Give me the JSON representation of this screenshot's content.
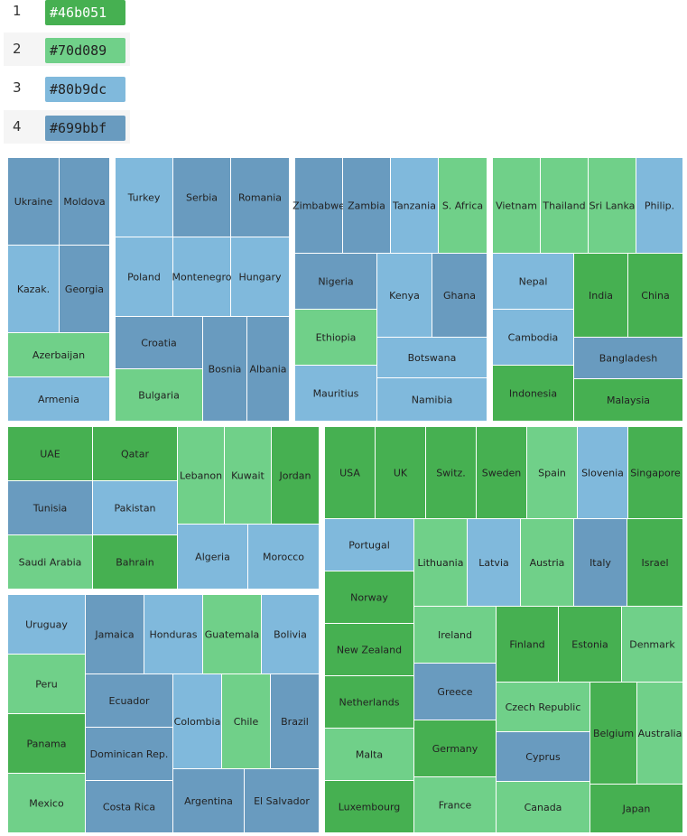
{
  "legend": [
    {
      "index": "1",
      "color": "#46b051",
      "label": "#46b051"
    },
    {
      "index": "2",
      "color": "#70d089",
      "label": "#70d089"
    },
    {
      "index": "3",
      "color": "#80b9dc",
      "label": "#80b9dc"
    },
    {
      "index": "4",
      "color": "#699bbf",
      "label": "#699bbf"
    }
  ],
  "chart_data": {
    "type": "treemap",
    "color_categories": {
      "1": "#46b051",
      "2": "#70d089",
      "3": "#80b9dc",
      "4": "#699bbf"
    },
    "leaves": [
      {
        "name": "Ukraine",
        "category": 4
      },
      {
        "name": "Moldova",
        "category": 4
      },
      {
        "name": "Kazak.",
        "category": 3
      },
      {
        "name": "Georgia",
        "category": 4
      },
      {
        "name": "Azerbaijan",
        "category": 2
      },
      {
        "name": "Armenia",
        "category": 3
      },
      {
        "name": "Turkey",
        "category": 3
      },
      {
        "name": "Serbia",
        "category": 4
      },
      {
        "name": "Romania",
        "category": 4
      },
      {
        "name": "Poland",
        "category": 3
      },
      {
        "name": "Montenegro",
        "category": 3
      },
      {
        "name": "Hungary",
        "category": 3
      },
      {
        "name": "Croatia",
        "category": 4
      },
      {
        "name": "Bulgaria",
        "category": 2
      },
      {
        "name": "Bosnia",
        "category": 4
      },
      {
        "name": "Albania",
        "category": 4
      },
      {
        "name": "Zimbabwe",
        "category": 4
      },
      {
        "name": "Zambia",
        "category": 4
      },
      {
        "name": "Tanzania",
        "category": 3
      },
      {
        "name": "S. Africa",
        "category": 2
      },
      {
        "name": "Nigeria",
        "category": 4
      },
      {
        "name": "Kenya",
        "category": 3
      },
      {
        "name": "Ghana",
        "category": 4
      },
      {
        "name": "Ethiopia",
        "category": 2
      },
      {
        "name": "Botswana",
        "category": 3
      },
      {
        "name": "Mauritius",
        "category": 3
      },
      {
        "name": "Namibia",
        "category": 3
      },
      {
        "name": "Vietnam",
        "category": 2
      },
      {
        "name": "Thailand",
        "category": 2
      },
      {
        "name": "Sri Lanka",
        "category": 2
      },
      {
        "name": "Philip.",
        "category": 3
      },
      {
        "name": "Nepal",
        "category": 3
      },
      {
        "name": "India",
        "category": 1
      },
      {
        "name": "China",
        "category": 1
      },
      {
        "name": "Cambodia",
        "category": 3
      },
      {
        "name": "Bangladesh",
        "category": 4
      },
      {
        "name": "Indonesia",
        "category": 1
      },
      {
        "name": "Malaysia",
        "category": 1
      },
      {
        "name": "UAE",
        "category": 1
      },
      {
        "name": "Qatar",
        "category": 1
      },
      {
        "name": "Lebanon",
        "category": 2
      },
      {
        "name": "Kuwait",
        "category": 2
      },
      {
        "name": "Jordan",
        "category": 1
      },
      {
        "name": "Tunisia",
        "category": 4
      },
      {
        "name": "Pakistan",
        "category": 3
      },
      {
        "name": "Saudi Arabia",
        "category": 2
      },
      {
        "name": "Bahrain",
        "category": 1
      },
      {
        "name": "Algeria",
        "category": 3
      },
      {
        "name": "Morocco",
        "category": 3
      },
      {
        "name": "Uruguay",
        "category": 3
      },
      {
        "name": "Jamaica",
        "category": 4
      },
      {
        "name": "Honduras",
        "category": 3
      },
      {
        "name": "Guatemala",
        "category": 2
      },
      {
        "name": "Bolivia",
        "category": 3
      },
      {
        "name": "Peru",
        "category": 2
      },
      {
        "name": "Ecuador",
        "category": 4
      },
      {
        "name": "Colombia",
        "category": 3
      },
      {
        "name": "Chile",
        "category": 2
      },
      {
        "name": "Brazil",
        "category": 4
      },
      {
        "name": "Panama",
        "category": 1
      },
      {
        "name": "Dominican Rep.",
        "category": 4
      },
      {
        "name": "Mexico",
        "category": 2
      },
      {
        "name": "Costa Rica",
        "category": 4
      },
      {
        "name": "Argentina",
        "category": 4
      },
      {
        "name": "El Salvador",
        "category": 4
      },
      {
        "name": "USA",
        "category": 1
      },
      {
        "name": "UK",
        "category": 1
      },
      {
        "name": "Switz.",
        "category": 1
      },
      {
        "name": "Sweden",
        "category": 1
      },
      {
        "name": "Spain",
        "category": 2
      },
      {
        "name": "Slovenia",
        "category": 3
      },
      {
        "name": "Singapore",
        "category": 1
      },
      {
        "name": "Portugal",
        "category": 3
      },
      {
        "name": "Lithuania",
        "category": 2
      },
      {
        "name": "Latvia",
        "category": 3
      },
      {
        "name": "Austria",
        "category": 2
      },
      {
        "name": "Italy",
        "category": 4
      },
      {
        "name": "Israel",
        "category": 1
      },
      {
        "name": "Norway",
        "category": 1
      },
      {
        "name": "Ireland",
        "category": 2
      },
      {
        "name": "Finland",
        "category": 1
      },
      {
        "name": "Estonia",
        "category": 1
      },
      {
        "name": "Denmark",
        "category": 2
      },
      {
        "name": "New Zealand",
        "category": 1
      },
      {
        "name": "Greece",
        "category": 4
      },
      {
        "name": "Czech Republic",
        "category": 2
      },
      {
        "name": "Netherlands",
        "category": 1
      },
      {
        "name": "Germany",
        "category": 1
      },
      {
        "name": "Belgium",
        "category": 1
      },
      {
        "name": "Australia",
        "category": 2
      },
      {
        "name": "Cyprus",
        "category": 4
      },
      {
        "name": "Malta",
        "category": 2
      },
      {
        "name": "France",
        "category": 2
      },
      {
        "name": "Canada",
        "category": 2
      },
      {
        "name": "Luxembourg",
        "category": 1
      },
      {
        "name": "Japan",
        "category": 1
      }
    ]
  }
}
